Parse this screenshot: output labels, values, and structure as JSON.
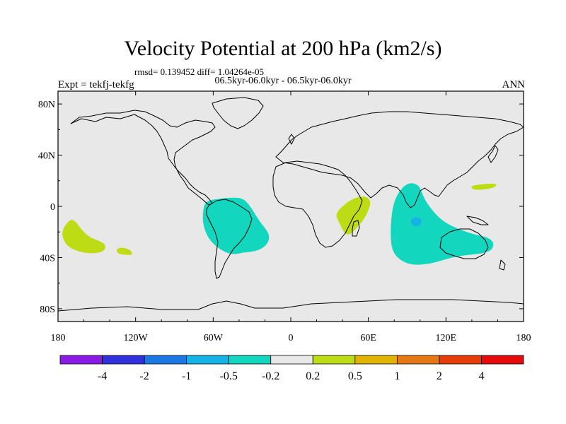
{
  "title": "Velocity Potential at 200 hPa (km2/s)",
  "rmsd_line": "rmsd= 0.139452 diff= 1.04264e-05",
  "center_label": "06.5kyr-06.0kyr - 06.5kyr-06.0kyr",
  "left_label": "Expt = tekfj-tekfg",
  "right_label": "ANN",
  "chart_data": {
    "type": "heatmap",
    "projection": "cylindrical-equidistant",
    "lon_range": [
      -180,
      180
    ],
    "lat_range": [
      -90,
      90
    ],
    "x_ticks": [
      {
        "lon": -180,
        "label": "180"
      },
      {
        "lon": -120,
        "label": "120W"
      },
      {
        "lon": -60,
        "label": "60W"
      },
      {
        "lon": 0,
        "label": "0"
      },
      {
        "lon": 60,
        "label": "60E"
      },
      {
        "lon": 120,
        "label": "120E"
      },
      {
        "lon": 180,
        "label": "180"
      }
    ],
    "y_ticks": [
      {
        "lat": 80,
        "label": "80N"
      },
      {
        "lat": 40,
        "label": "40N"
      },
      {
        "lat": 0,
        "label": "0"
      },
      {
        "lat": -40,
        "label": "40S"
      },
      {
        "lat": -80,
        "label": "80S"
      }
    ],
    "background_color": "#e8e8e8",
    "colorbar": {
      "colors": [
        "#8a1ae6",
        "#3030dc",
        "#1a78e6",
        "#14b4e6",
        "#12d6be",
        "#e8e8e8",
        "#bedc14",
        "#e0b400",
        "#e67814",
        "#e63c0a",
        "#e60a0a"
      ],
      "labels": [
        "-4",
        "-2",
        "-1",
        "-0.5",
        "-0.2",
        "0.2",
        "0.5",
        "1",
        "2",
        "4"
      ]
    },
    "anomaly_regions": [
      {
        "name": "central-pacific-positive",
        "level": "0.2 to 0.5",
        "color": "#bedc14",
        "outline": [
          [
            -174,
            -14
          ],
          [
            -170,
            -10
          ],
          [
            -166,
            -12
          ],
          [
            -162,
            -18
          ],
          [
            -156,
            -24
          ],
          [
            -148,
            -27
          ],
          [
            -143,
            -30
          ],
          [
            -144,
            -35
          ],
          [
            -152,
            -37
          ],
          [
            -162,
            -36
          ],
          [
            -172,
            -32
          ],
          [
            -176,
            -26
          ],
          [
            -177,
            -20
          ]
        ]
      },
      {
        "name": "south-pacific-positive-small",
        "level": "0.2 to 0.5",
        "color": "#bedc14",
        "outline": [
          [
            -135,
            -33
          ],
          [
            -130,
            -32
          ],
          [
            -124,
            -34
          ],
          [
            -122,
            -38
          ],
          [
            -128,
            -38
          ],
          [
            -134,
            -37
          ]
        ]
      },
      {
        "name": "south-america-negative",
        "level": "-0.5 to -0.2",
        "color": "#12d6be",
        "outline": [
          [
            -66,
            4
          ],
          [
            -56,
            6
          ],
          [
            -44,
            7
          ],
          [
            -36,
            6
          ],
          [
            -30,
            -2
          ],
          [
            -24,
            -12
          ],
          [
            -16,
            -22
          ],
          [
            -18,
            -30
          ],
          [
            -26,
            -35
          ],
          [
            -36,
            -36
          ],
          [
            -46,
            -38
          ],
          [
            -56,
            -33
          ],
          [
            -64,
            -25
          ],
          [
            -68,
            -14
          ],
          [
            -68,
            -4
          ]
        ]
      },
      {
        "name": "east-africa-positive",
        "level": "0.2 to 0.5",
        "color": "#bedc14",
        "outline": [
          [
            36,
            -4
          ],
          [
            40,
            0
          ],
          [
            46,
            5
          ],
          [
            54,
            8
          ],
          [
            60,
            7
          ],
          [
            62,
            2
          ],
          [
            58,
            -8
          ],
          [
            52,
            -16
          ],
          [
            46,
            -22
          ],
          [
            42,
            -22
          ],
          [
            38,
            -14
          ],
          [
            35,
            -8
          ]
        ]
      },
      {
        "name": "indian-ocean-negative",
        "level": "-0.5 to -0.2",
        "color": "#12d6be",
        "outline": [
          [
            84,
            12
          ],
          [
            90,
            18
          ],
          [
            96,
            18
          ],
          [
            100,
            15
          ],
          [
            103,
            6
          ],
          [
            110,
            -4
          ],
          [
            118,
            -12
          ],
          [
            130,
            -18
          ],
          [
            142,
            -22
          ],
          [
            152,
            -24
          ],
          [
            157,
            -28
          ],
          [
            156,
            -34
          ],
          [
            148,
            -37
          ],
          [
            136,
            -38
          ],
          [
            124,
            -40
          ],
          [
            108,
            -45
          ],
          [
            94,
            -46
          ],
          [
            84,
            -42
          ],
          [
            78,
            -34
          ],
          [
            77,
            -20
          ],
          [
            78,
            -6
          ],
          [
            80,
            4
          ]
        ]
      },
      {
        "name": "indian-ocean-negative-core",
        "level": "-1 to -0.5",
        "color": "#14b4e6",
        "outline": [
          [
            93,
            -10
          ],
          [
            97,
            -8
          ],
          [
            101,
            -10
          ],
          [
            101,
            -14
          ],
          [
            97,
            -16
          ],
          [
            93,
            -14
          ]
        ]
      },
      {
        "name": "west-pacific-positive",
        "level": "0.2 to 0.5",
        "color": "#bedc14",
        "outline": [
          [
            139,
            16
          ],
          [
            146,
            17
          ],
          [
            156,
            18
          ],
          [
            160,
            17
          ],
          [
            156,
            14
          ],
          [
            147,
            13
          ],
          [
            141,
            13
          ]
        ]
      }
    ]
  }
}
